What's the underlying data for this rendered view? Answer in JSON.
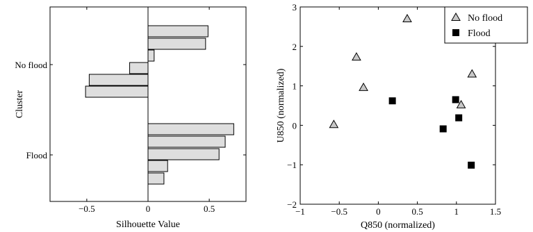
{
  "chart_data": [
    {
      "type": "bar",
      "orientation": "horizontal",
      "xlabel": "Silhouette Value",
      "ylabel": "Cluster",
      "xlim": [
        -0.8,
        0.8
      ],
      "xticks": [
        -0.5,
        0,
        0.5
      ],
      "x_tick_labels": [
        "−0.5",
        "0",
        "0.5"
      ],
      "clusters": [
        {
          "name": "No flood",
          "values": [
            0.49,
            0.47,
            0.05,
            -0.15,
            -0.48,
            -0.51
          ]
        },
        {
          "name": "Flood",
          "values": [
            0.7,
            0.63,
            0.58,
            0.16,
            0.13
          ]
        }
      ],
      "bar_color": "#dedede"
    },
    {
      "type": "scatter",
      "xlabel": "Q850 (normalized)",
      "ylabel": "U850 (normalized)",
      "xlim": [
        -1,
        1.5
      ],
      "ylim": [
        -2,
        3
      ],
      "xticks": [
        -1,
        -0.5,
        0,
        0.5,
        1,
        1.5
      ],
      "x_tick_labels": [
        "−1",
        "−0.5",
        "0",
        "0.5",
        "1",
        "1.5"
      ],
      "yticks": [
        -2,
        -1,
        0,
        1,
        2,
        3
      ],
      "y_tick_labels": [
        "−2",
        "−1",
        "0",
        "1",
        "2",
        "3"
      ],
      "legend_position": "top-right",
      "series": [
        {
          "name": "No flood",
          "marker": "triangle",
          "color": "#c8c8c8",
          "points": [
            [
              -0.57,
              0.02
            ],
            [
              -0.28,
              1.73
            ],
            [
              -0.19,
              0.96
            ],
            [
              0.37,
              2.7
            ],
            [
              1.06,
              0.52
            ],
            [
              1.2,
              1.3
            ]
          ]
        },
        {
          "name": "Flood",
          "marker": "square",
          "color": "#000000",
          "points": [
            [
              0.18,
              0.62
            ],
            [
              0.83,
              -0.09
            ],
            [
              0.99,
              0.65
            ],
            [
              1.03,
              0.19
            ],
            [
              1.19,
              -1.01
            ]
          ]
        }
      ]
    }
  ]
}
